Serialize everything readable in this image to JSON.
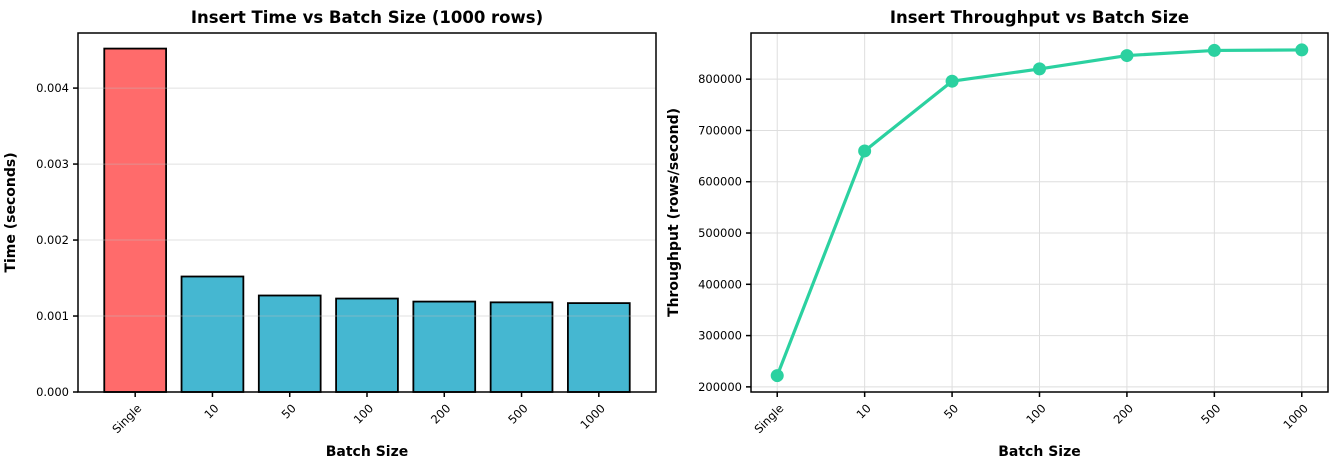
{
  "figure": {
    "background": "#ffffff",
    "text_color": "#000000",
    "spine_color": "#000000"
  },
  "chart_data": [
    {
      "type": "bar",
      "title": "Insert Time vs Batch Size (1000 rows)",
      "xlabel": "Batch Size",
      "ylabel": "Time (seconds)",
      "categories": [
        "Single",
        "10",
        "50",
        "100",
        "200",
        "500",
        "1000"
      ],
      "values": [
        0.00452,
        0.00152,
        0.00127,
        0.00123,
        0.00119,
        0.00118,
        0.00117
      ],
      "bar_colors": [
        "#ff6b6b",
        "#45b7d1",
        "#45b7d1",
        "#45b7d1",
        "#45b7d1",
        "#45b7d1",
        "#45b7d1"
      ],
      "edge_color": "#000000",
      "ylim": [
        0,
        0.004725
      ],
      "yticks": [
        0,
        0.001,
        0.002,
        0.003,
        0.004
      ],
      "ytick_labels": [
        "0.000",
        "0.001",
        "0.002",
        "0.003",
        "0.004"
      ],
      "xtick_rotation": 45,
      "grid": "y",
      "grid_color": "#bdbdbd",
      "grid_over_data": true,
      "legend": "none"
    },
    {
      "type": "line",
      "title": "Insert Throughput vs Batch Size",
      "xlabel": "Batch Size",
      "ylabel": "Throughput (rows/second)",
      "categories": [
        "Single",
        "10",
        "50",
        "100",
        "200",
        "500",
        "1000"
      ],
      "values": [
        222000,
        660000,
        796000,
        820000,
        846000,
        856000,
        857000
      ],
      "line_color": "#2bd1a0",
      "marker": "circle",
      "ylim": [
        190000,
        890000
      ],
      "yticks": [
        200000,
        300000,
        400000,
        500000,
        600000,
        700000,
        800000
      ],
      "ytick_labels": [
        "200000",
        "300000",
        "400000",
        "500000",
        "600000",
        "700000",
        "800000"
      ],
      "xtick_rotation": 45,
      "grid": "both",
      "grid_color": "#dedede",
      "grid_over_data": false,
      "legend": "none"
    }
  ]
}
